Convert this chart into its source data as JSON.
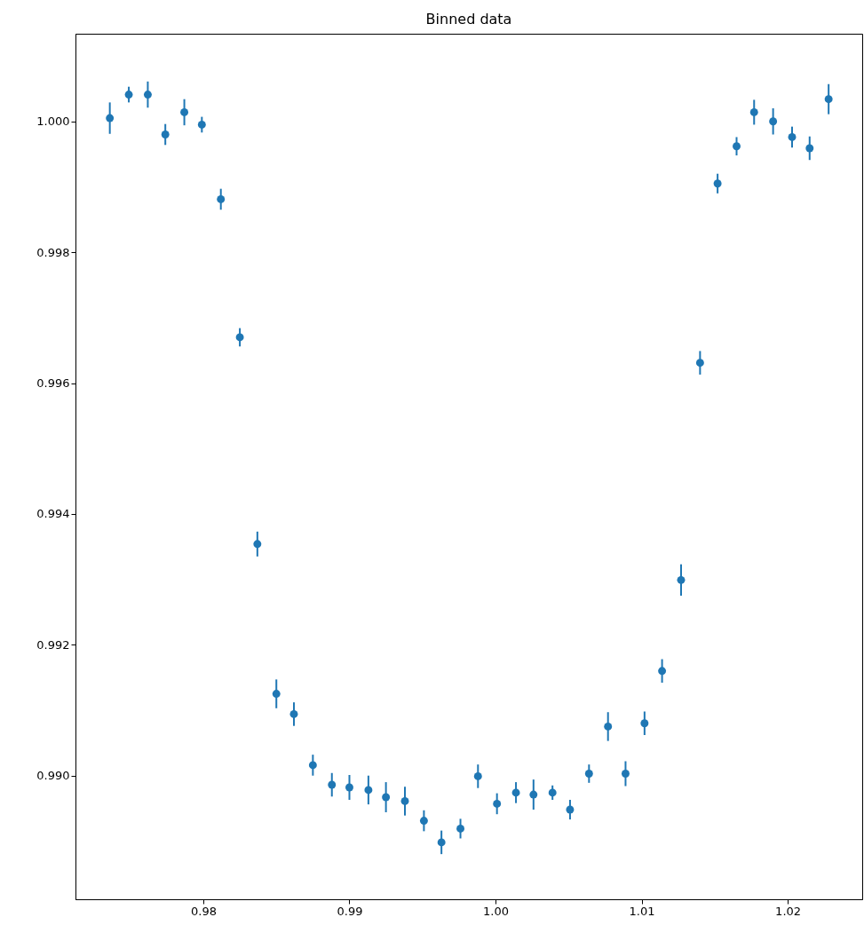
{
  "chart_data": {
    "type": "scatter",
    "title": "Binned data",
    "marker": "circle",
    "grid": false,
    "xlim": [
      0.97125,
      1.0251
    ],
    "ylim": [
      0.98811,
      1.00134
    ],
    "xticks": [
      {
        "value": 0.98,
        "label": "0.98"
      },
      {
        "value": 0.99,
        "label": "0.99"
      },
      {
        "value": 1,
        "label": "1.00"
      },
      {
        "value": 1.01,
        "label": "1.01"
      },
      {
        "value": 1.02,
        "label": "1.02"
      }
    ],
    "yticks": [
      {
        "value": 0.99,
        "label": "0.990"
      },
      {
        "value": 0.992,
        "label": "0.992"
      },
      {
        "value": 0.994,
        "label": "0.994"
      },
      {
        "value": 0.996,
        "label": "0.996"
      },
      {
        "value": 0.998,
        "label": "0.998"
      },
      {
        "value": 1,
        "label": "1.000"
      }
    ],
    "series": [
      {
        "color": "#1f77b4",
        "x": [
          0.9736,
          0.9749,
          0.9762,
          0.9774,
          0.9787,
          0.9799,
          0.9812,
          0.9825,
          0.9837,
          0.985,
          0.9862,
          0.9875,
          0.9888,
          0.99,
          0.9913,
          0.9925,
          0.9938,
          0.9951,
          0.9963,
          0.9976,
          0.9988,
          1.0001,
          1.0014,
          1.0026,
          1.0039,
          1.0051,
          1.0064,
          1.0077,
          1.0089,
          1.0102,
          1.0114,
          1.0127,
          1.014,
          1.0152,
          1.0165,
          1.0177,
          1.019,
          1.0203,
          1.0215,
          1.0228
        ],
        "values": [
          1.00005,
          1.00041,
          1.00041,
          0.9998,
          1.00014,
          0.99995,
          0.99881,
          0.9967,
          0.99354,
          0.99125,
          0.99094,
          0.99016,
          0.98986,
          0.98982,
          0.98978,
          0.98967,
          0.98961,
          0.98931,
          0.98898,
          0.98919,
          0.98999,
          0.98957,
          0.98974,
          0.98971,
          0.98974,
          0.98948,
          0.99003,
          0.99075,
          0.99003,
          0.9908,
          0.9916,
          0.99299,
          0.99631,
          0.99905,
          0.99962,
          1.00014,
          1,
          0.99976,
          0.99959,
          1.00034
        ],
        "errors": [
          0.00024,
          0.00012,
          0.0002,
          0.00016,
          0.0002,
          0.00012,
          0.00016,
          0.00014,
          0.00019,
          0.00022,
          0.00018,
          0.00016,
          0.00018,
          0.00019,
          0.00022,
          0.00023,
          0.00022,
          0.00016,
          0.00018,
          0.00015,
          0.00018,
          0.00016,
          0.00016,
          0.00023,
          0.00011,
          0.00015,
          0.00014,
          0.00022,
          0.00019,
          0.00018,
          0.00018,
          0.00024,
          0.00018,
          0.00015,
          0.00014,
          0.00019,
          0.0002,
          0.00016,
          0.00018,
          0.00023
        ]
      }
    ]
  }
}
